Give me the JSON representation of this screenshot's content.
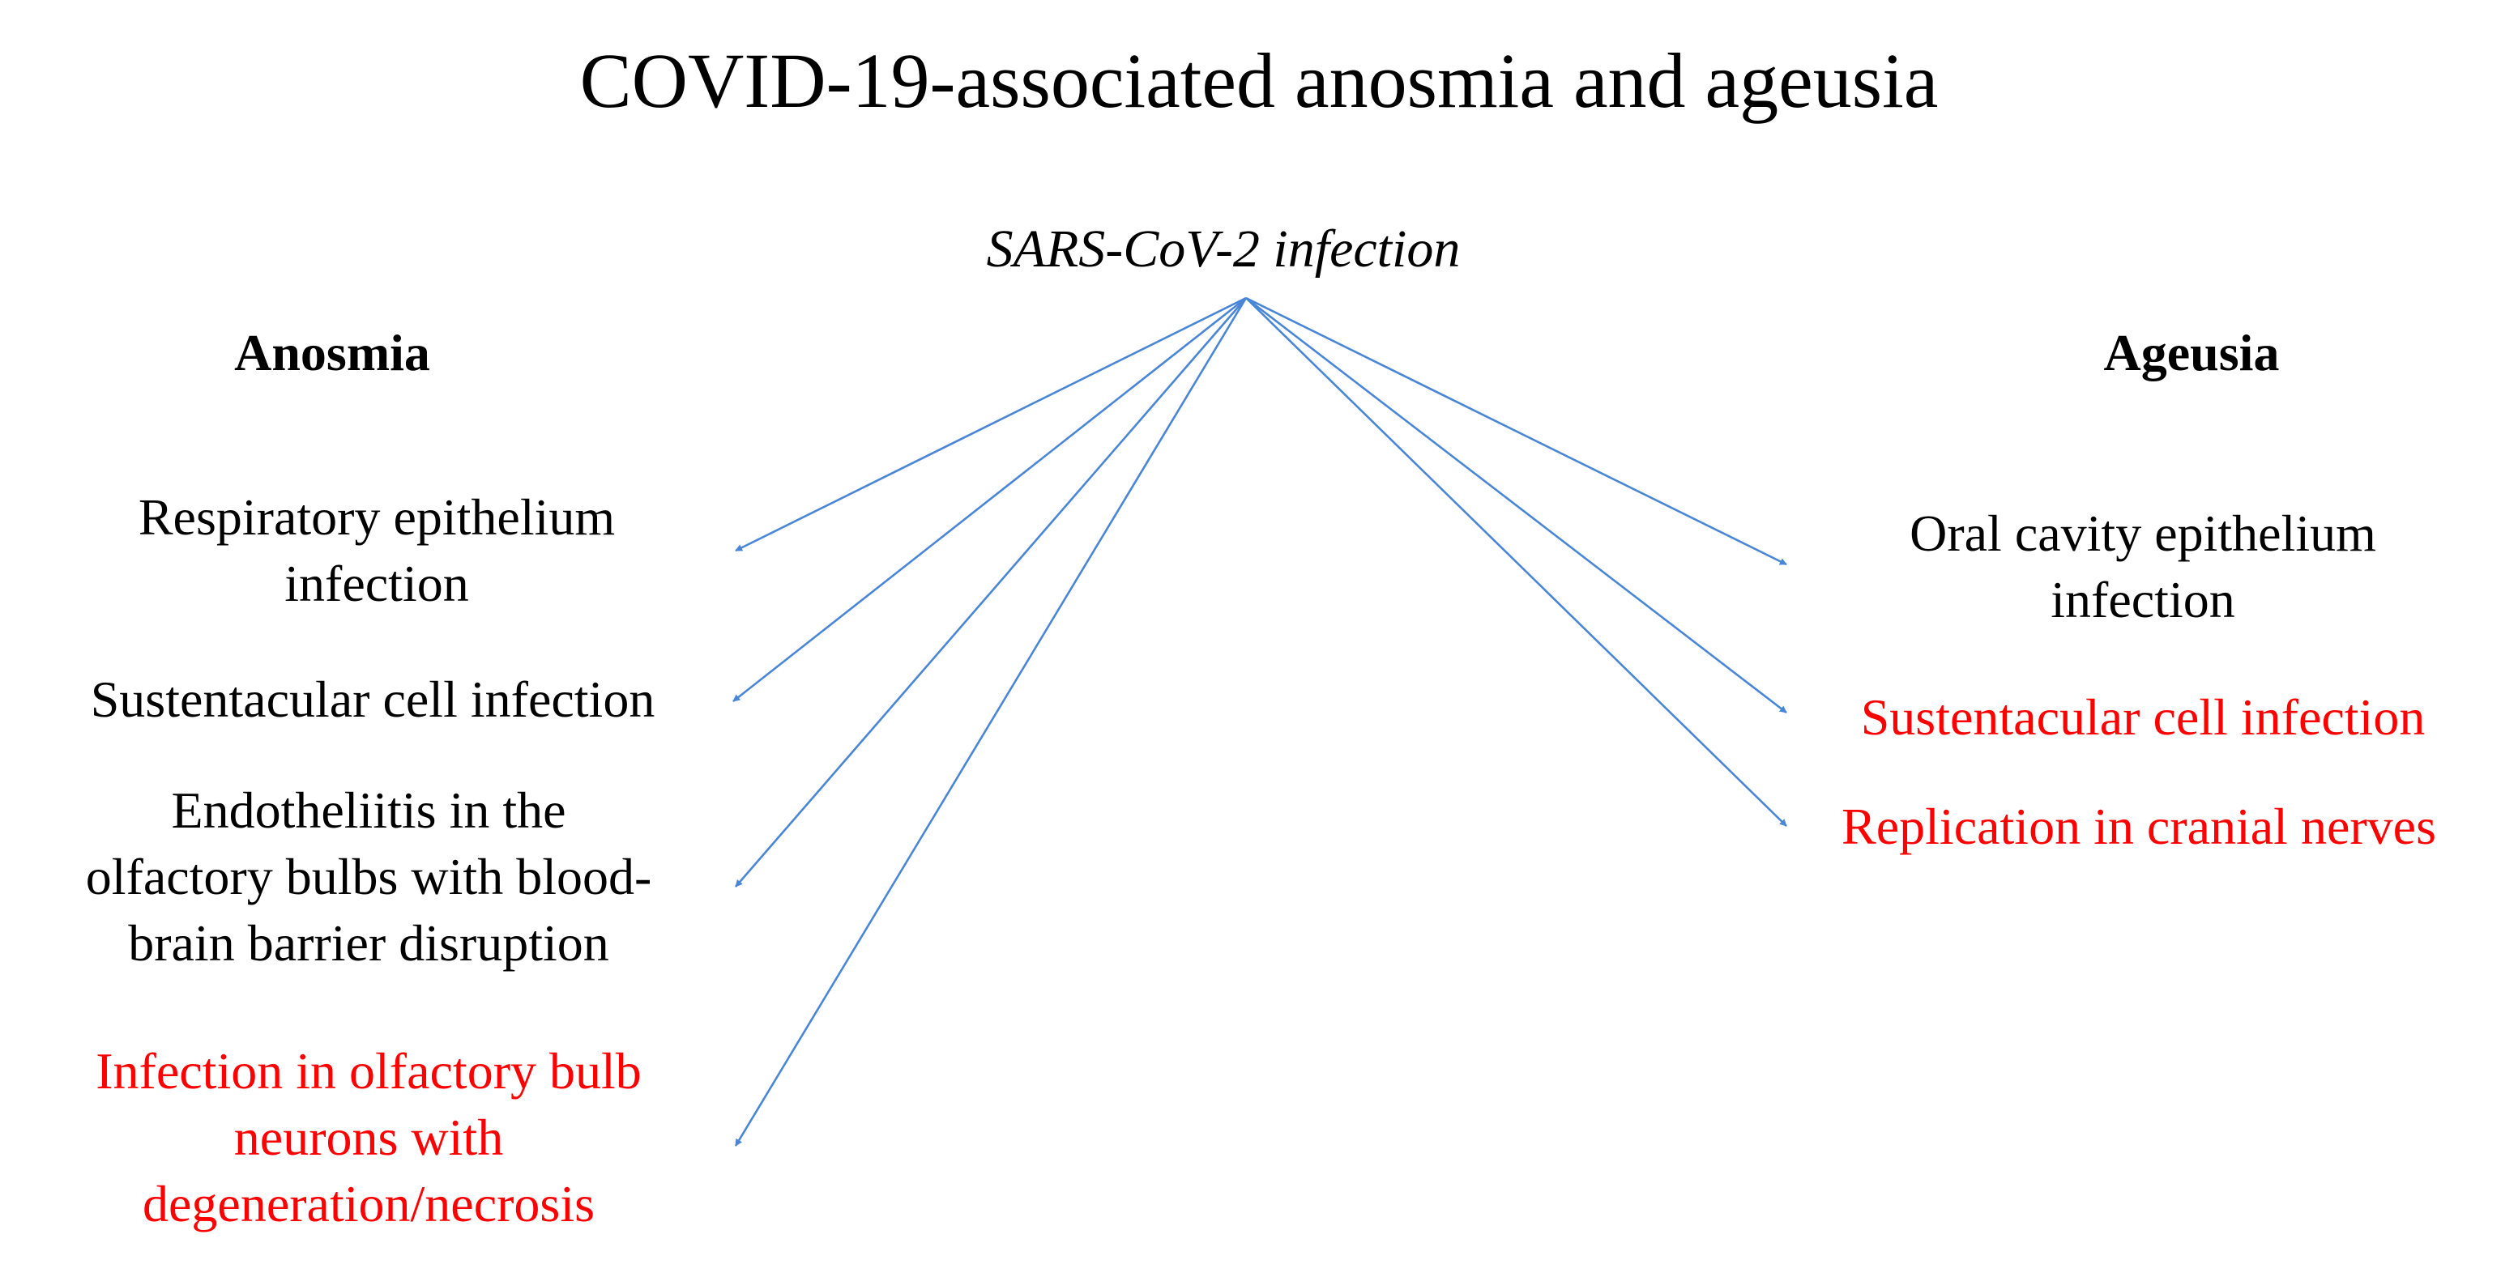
{
  "title": "COVID-19-associated anosmia and ageusia",
  "source": "SARS-CoV-2 infection",
  "colors": {
    "text": "#000000",
    "highlight": "#ff0000",
    "arrow": "#4a86d6"
  },
  "anosmia": {
    "heading": "Anosmia",
    "items": [
      {
        "text": "Respiratory epithelium\ninfection",
        "color": "#000000"
      },
      {
        "text": "Sustentacular  cell infection",
        "color": "#000000"
      },
      {
        "text": "Endotheliitis in the\nolfactory bulbs with blood-\nbrain barrier disruption",
        "color": "#000000"
      },
      {
        "text": "Infection in olfactory bulb\nneurons with\ndegeneration/necrosis",
        "color": "#ff0000"
      }
    ]
  },
  "ageusia": {
    "heading": "Ageusia",
    "items": [
      {
        "text": "Oral cavity epithelium\ninfection",
        "color": "#000000"
      },
      {
        "text": "Sustentacular  cell infection",
        "color": "#ff0000"
      },
      {
        "text": "Replication in cranial nerves",
        "color": "#ff0000"
      }
    ]
  }
}
